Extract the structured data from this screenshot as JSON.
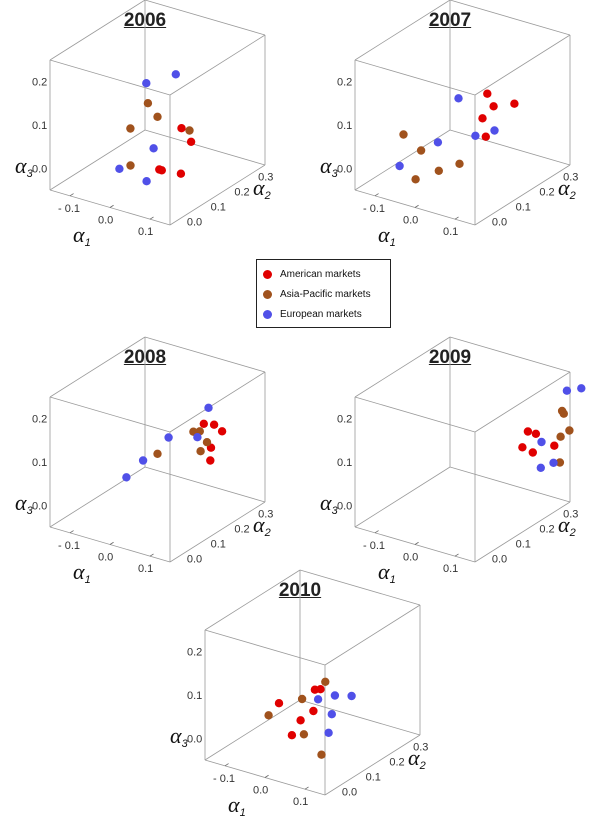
{
  "colors": {
    "American markets": "#e00000",
    "Asia-Pacific markets": "#a0521d",
    "European markets": "#5050e8"
  },
  "legend": [
    {
      "label": "American markets",
      "color": "#e00000"
    },
    {
      "label": "Asia-Pacific markets",
      "color": "#a0521d"
    },
    {
      "label": "European markets",
      "color": "#5050e8"
    }
  ],
  "axes": {
    "a1_label": "α",
    "a1_sub": "1",
    "a1_ticks": [
      "- 0.1",
      "0.0",
      "0.1"
    ],
    "a2_label": "α",
    "a2_sub": "2",
    "a2_ticks": [
      "0.3",
      "0.2",
      "0.1",
      "0.0"
    ],
    "a3_label": "α",
    "a3_sub": "3",
    "a3_ticks": [
      "0.2",
      "0.1",
      "0.0"
    ]
  },
  "chart_data": [
    {
      "type": "scatter",
      "title": "2006",
      "xlabel": "α1",
      "ylabel": "α2",
      "zlabel": "α3",
      "series": [
        {
          "name": "American markets",
          "points": [
            [
              0.06,
              0.15,
              0.08
            ],
            [
              0.09,
              0.14,
              0.06
            ],
            [
              0.04,
              0.09,
              0.0
            ],
            [
              0.07,
              0.05,
              0.02
            ],
            [
              0.1,
              0.08,
              0.01
            ]
          ]
        },
        {
          "name": "Asia-Pacific markets",
          "points": [
            [
              -0.03,
              0.16,
              0.11
            ],
            [
              -0.05,
              0.12,
              0.06
            ],
            [
              0.0,
              0.15,
              0.09
            ],
            [
              0.08,
              0.15,
              0.08
            ],
            [
              -0.02,
              0.07,
              0.0
            ]
          ]
        },
        {
          "name": "European markets",
          "points": [
            [
              -0.04,
              0.17,
              0.15
            ],
            [
              0.01,
              0.21,
              0.17
            ],
            [
              -0.03,
              0.04,
              0.0
            ],
            [
              0.02,
              0.1,
              0.04
            ],
            [
              0.05,
              0.02,
              0.0
            ]
          ]
        }
      ]
    },
    {
      "type": "scatter",
      "title": "2007",
      "xlabel": "α1",
      "ylabel": "α2",
      "zlabel": "α3",
      "series": [
        {
          "name": "American markets",
          "points": [
            [
              0.06,
              0.18,
              0.12
            ],
            [
              0.1,
              0.2,
              0.13
            ],
            [
              0.05,
              0.15,
              0.1
            ],
            [
              0.07,
              0.13,
              0.07
            ],
            [
              0.05,
              0.17,
              0.15
            ]
          ]
        },
        {
          "name": "Asia-Pacific markets",
          "points": [
            [
              -0.1,
              0.07,
              0.05
            ],
            [
              -0.05,
              0.06,
              0.03
            ],
            [
              0.0,
              0.05,
              0.0
            ],
            [
              -0.04,
              0.02,
              -0.02
            ],
            [
              0.04,
              0.07,
              0.02
            ]
          ]
        },
        {
          "name": "European markets",
          "points": [
            [
              -0.01,
              0.15,
              0.13
            ],
            [
              -0.02,
              0.08,
              0.05
            ],
            [
              0.05,
              0.12,
              0.07
            ],
            [
              0.08,
              0.15,
              0.08
            ],
            [
              -0.08,
              0.02,
              0.0
            ]
          ]
        }
      ]
    },
    {
      "type": "scatter",
      "title": "2008",
      "xlabel": "α1",
      "ylabel": "α2",
      "zlabel": "α3",
      "series": [
        {
          "name": "American markets",
          "points": [
            [
              0.08,
              0.21,
              0.16
            ],
            [
              0.1,
              0.22,
              0.16
            ],
            [
              0.12,
              0.22,
              0.15
            ],
            [
              0.11,
              0.19,
              0.12
            ],
            [
              0.12,
              0.17,
              0.1
            ]
          ]
        },
        {
          "name": "Asia-Pacific markets",
          "points": [
            [
              0.0,
              0.15,
              0.09
            ],
            [
              0.07,
              0.21,
              0.14
            ],
            [
              0.09,
              0.18,
              0.11
            ],
            [
              0.06,
              0.2,
              0.14
            ],
            [
              0.1,
              0.19,
              0.13
            ]
          ]
        },
        {
          "name": "European markets",
          "points": [
            [
              -0.06,
              0.12,
              0.03
            ],
            [
              -0.03,
              0.14,
              0.07
            ],
            [
              0.01,
              0.18,
              0.12
            ],
            [
              0.08,
              0.23,
              0.19
            ],
            [
              0.07,
              0.2,
              0.13
            ]
          ]
        }
      ]
    },
    {
      "type": "scatter",
      "title": "2009",
      "xlabel": "α1",
      "ylabel": "α2",
      "zlabel": "α3",
      "series": [
        {
          "name": "American markets",
          "points": [
            [
              0.11,
              0.24,
              0.14
            ],
            [
              0.13,
              0.24,
              0.14
            ],
            [
              0.12,
              0.2,
              0.12
            ],
            [
              0.14,
              0.21,
              0.11
            ],
            [
              0.17,
              0.25,
              0.12
            ]
          ]
        },
        {
          "name": "Asia-Pacific markets",
          "points": [
            [
              0.17,
              0.29,
              0.18
            ],
            [
              0.19,
              0.28,
              0.15
            ],
            [
              0.18,
              0.26,
              0.14
            ],
            [
              0.16,
              0.3,
              0.18
            ],
            [
              0.19,
              0.24,
              0.09
            ]
          ]
        },
        {
          "name": "European markets",
          "points": [
            [
              0.16,
              0.32,
              0.22
            ],
            [
              0.19,
              0.33,
              0.23
            ],
            [
              0.15,
              0.23,
              0.13
            ],
            [
              0.16,
              0.21,
              0.08
            ],
            [
              0.18,
              0.23,
              0.09
            ]
          ]
        }
      ]
    },
    {
      "type": "scatter",
      "title": "2010",
      "xlabel": "α1",
      "ylabel": "α2",
      "zlabel": "α3",
      "series": [
        {
          "name": "American markets",
          "points": [
            [
              -0.06,
              0.11,
              0.05
            ],
            [
              0.0,
              0.16,
              0.08
            ],
            [
              0.02,
              0.12,
              0.05
            ],
            [
              0.0,
              0.1,
              0.03
            ],
            [
              -0.01,
              0.08,
              0.0
            ],
            [
              0.02,
              0.15,
              0.09
            ]
          ]
        },
        {
          "name": "Asia-Pacific markets",
          "points": [
            [
              -0.08,
              0.1,
              0.02
            ],
            [
              -0.02,
              0.14,
              0.06
            ],
            [
              0.02,
              0.17,
              0.1
            ],
            [
              0.02,
              0.08,
              0.01
            ],
            [
              0.07,
              0.07,
              -0.02
            ]
          ]
        },
        {
          "name": "European markets",
          "points": [
            [
              0.02,
              0.14,
              0.07
            ],
            [
              0.05,
              0.16,
              0.08
            ],
            [
              0.08,
              0.18,
              0.08
            ],
            [
              0.06,
              0.13,
              0.05
            ],
            [
              0.07,
              0.1,
              0.02
            ]
          ]
        }
      ]
    }
  ]
}
